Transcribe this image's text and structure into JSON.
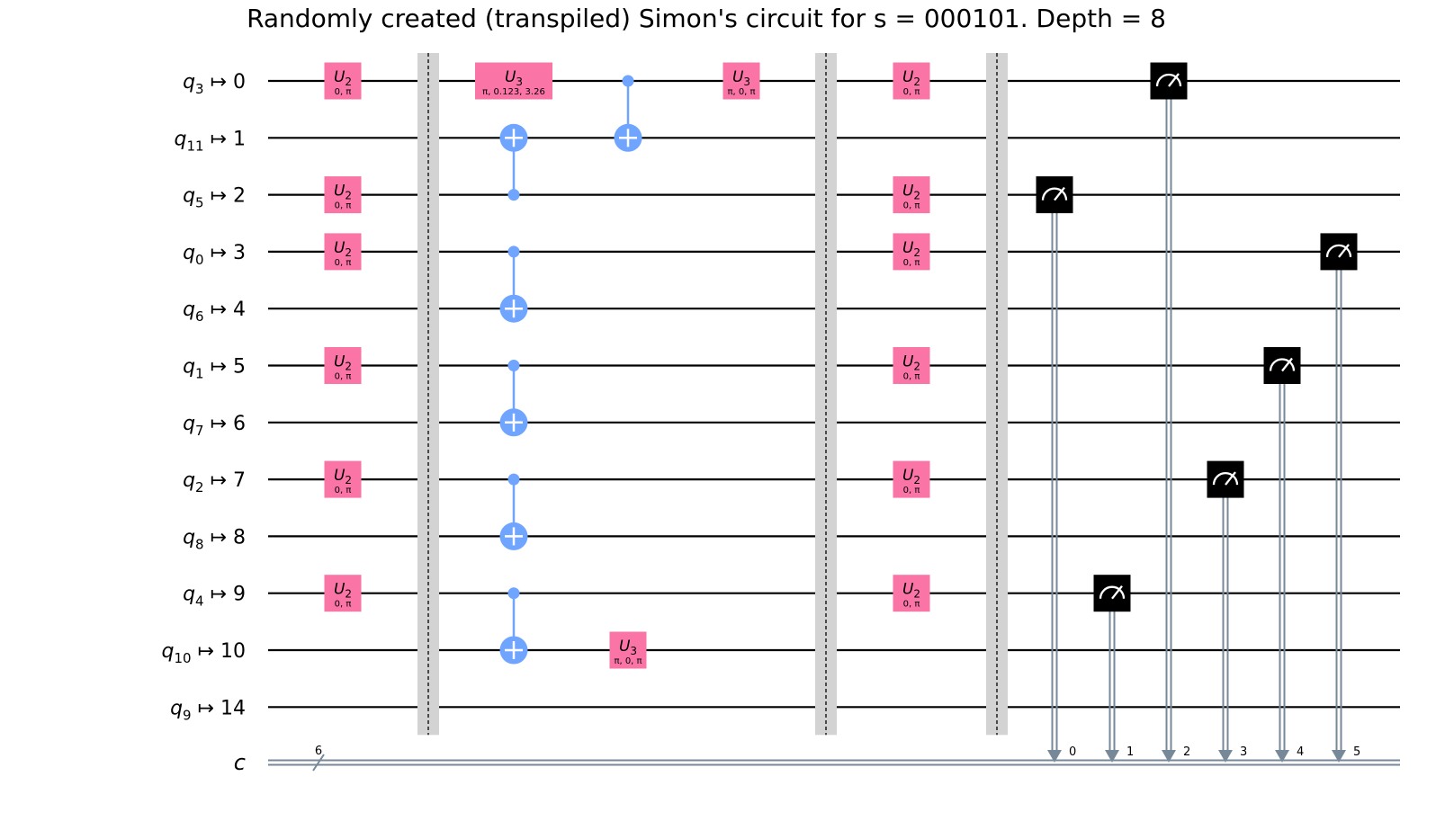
{
  "title": "Randomly created (transpiled) Simon's circuit for s = 000101. Depth = 8",
  "colors": {
    "u_gate": "#fa74a6",
    "cx": "#6fa4ff",
    "measure": "#000000",
    "barrier": "#d3d3d3",
    "classical": "#778899",
    "wire": "#000000"
  },
  "qubits": [
    {
      "virt": "3",
      "phys": "0"
    },
    {
      "virt": "11",
      "phys": "1"
    },
    {
      "virt": "5",
      "phys": "2"
    },
    {
      "virt": "0",
      "phys": "3"
    },
    {
      "virt": "6",
      "phys": "4"
    },
    {
      "virt": "1",
      "phys": "5"
    },
    {
      "virt": "7",
      "phys": "6"
    },
    {
      "virt": "2",
      "phys": "7"
    },
    {
      "virt": "8",
      "phys": "8"
    },
    {
      "virt": "4",
      "phys": "9"
    },
    {
      "virt": "10",
      "phys": "10"
    },
    {
      "virt": "9",
      "phys": "14"
    }
  ],
  "classical_register": {
    "name": "c",
    "size": "6"
  },
  "columns": 12,
  "gates": [
    {
      "type": "u",
      "label": "U",
      "sub": "2",
      "params": "0, π",
      "qubit": 0,
      "col": 1
    },
    {
      "type": "u",
      "label": "U",
      "sub": "2",
      "params": "0, π",
      "qubit": 2,
      "col": 1
    },
    {
      "type": "u",
      "label": "U",
      "sub": "2",
      "params": "0, π",
      "qubit": 3,
      "col": 1
    },
    {
      "type": "u",
      "label": "U",
      "sub": "2",
      "params": "0, π",
      "qubit": 5,
      "col": 1
    },
    {
      "type": "u",
      "label": "U",
      "sub": "2",
      "params": "0, π",
      "qubit": 7,
      "col": 1
    },
    {
      "type": "u",
      "label": "U",
      "sub": "2",
      "params": "0, π",
      "qubit": 9,
      "col": 1
    },
    {
      "type": "barrier",
      "col": 2
    },
    {
      "type": "u",
      "label": "U",
      "sub": "3",
      "params": "π, 0.123, 3.26",
      "qubit": 0,
      "col": 3,
      "wide": true
    },
    {
      "type": "cx",
      "control": 2,
      "target": 1,
      "col": 3
    },
    {
      "type": "cx",
      "control": 3,
      "target": 4,
      "col": 3
    },
    {
      "type": "cx",
      "control": 5,
      "target": 6,
      "col": 3
    },
    {
      "type": "cx",
      "control": 7,
      "target": 8,
      "col": 3
    },
    {
      "type": "cx",
      "control": 9,
      "target": 10,
      "col": 3
    },
    {
      "type": "cx",
      "control": 0,
      "target": 1,
      "col": 4
    },
    {
      "type": "u",
      "label": "U",
      "sub": "3",
      "params": "π, 0, π",
      "qubit": 10,
      "col": 4
    },
    {
      "type": "u",
      "label": "U",
      "sub": "3",
      "params": "π, 0, π",
      "qubit": 0,
      "col": 5
    },
    {
      "type": "barrier",
      "col": 6
    },
    {
      "type": "u",
      "label": "U",
      "sub": "2",
      "params": "0, π",
      "qubit": 0,
      "col": 7
    },
    {
      "type": "u",
      "label": "U",
      "sub": "2",
      "params": "0, π",
      "qubit": 2,
      "col": 7
    },
    {
      "type": "u",
      "label": "U",
      "sub": "2",
      "params": "0, π",
      "qubit": 3,
      "col": 7
    },
    {
      "type": "u",
      "label": "U",
      "sub": "2",
      "params": "0, π",
      "qubit": 5,
      "col": 7
    },
    {
      "type": "u",
      "label": "U",
      "sub": "2",
      "params": "0, π",
      "qubit": 7,
      "col": 7
    },
    {
      "type": "u",
      "label": "U",
      "sub": "2",
      "params": "0, π",
      "qubit": 9,
      "col": 7
    },
    {
      "type": "barrier",
      "col": 8
    },
    {
      "type": "measure",
      "qubit": 2,
      "clbit": "0",
      "col": 9
    },
    {
      "type": "measure",
      "qubit": 9,
      "clbit": "1",
      "col": 10
    },
    {
      "type": "measure",
      "qubit": 0,
      "clbit": "2",
      "col": 11
    },
    {
      "type": "measure",
      "qubit": 7,
      "clbit": "3",
      "col": 12
    },
    {
      "type": "measure",
      "qubit": 5,
      "clbit": "4",
      "col": 13
    },
    {
      "type": "measure",
      "qubit": 3,
      "clbit": "5",
      "col": 14
    }
  ]
}
